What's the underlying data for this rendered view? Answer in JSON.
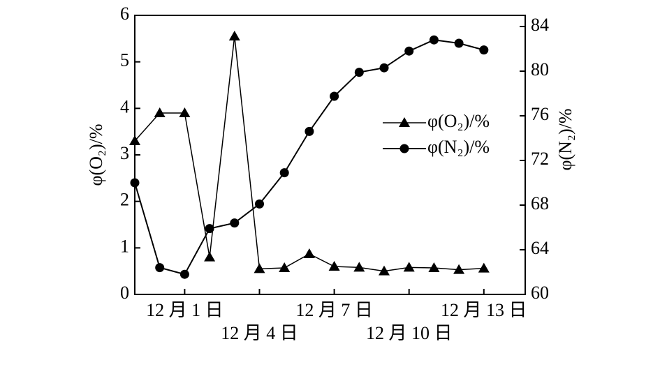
{
  "chart_data": {
    "type": "line",
    "categories": [
      null,
      null,
      "12 月 1 日",
      null,
      null,
      "12 月 4 日",
      null,
      null,
      "12 月 7 日",
      null,
      null,
      "12 月 10 日",
      null,
      null,
      "12 月 13 日"
    ],
    "ylabel": "φ(O₂)/%",
    "y2label": "φ(N₂)/%",
    "ylim": [
      0,
      6
    ],
    "yticks": [
      0,
      1,
      2,
      3,
      4,
      5,
      6
    ],
    "y2lim": [
      60,
      85
    ],
    "y2ticks": [
      60,
      64,
      68,
      72,
      76,
      80,
      84
    ],
    "series": [
      {
        "name": "φ(O₂)/%",
        "color": "#000000",
        "marker": "triangle",
        "values": [
          3.3,
          3.9,
          3.9,
          0.8,
          5.55,
          0.55,
          0.57,
          0.87,
          0.6,
          0.58,
          0.5,
          0.58,
          0.57,
          0.53,
          0.56
        ]
      },
      {
        "name": "φ(N₂)/%",
        "color": "#000000",
        "marker": "circle",
        "axis": "y2",
        "values": [
          70.0,
          62.4,
          61.8,
          65.9,
          66.4,
          68.1,
          70.9,
          74.6,
          77.75,
          79.9,
          80.3,
          81.8,
          82.8,
          82.5,
          81.9
        ]
      }
    ]
  }
}
